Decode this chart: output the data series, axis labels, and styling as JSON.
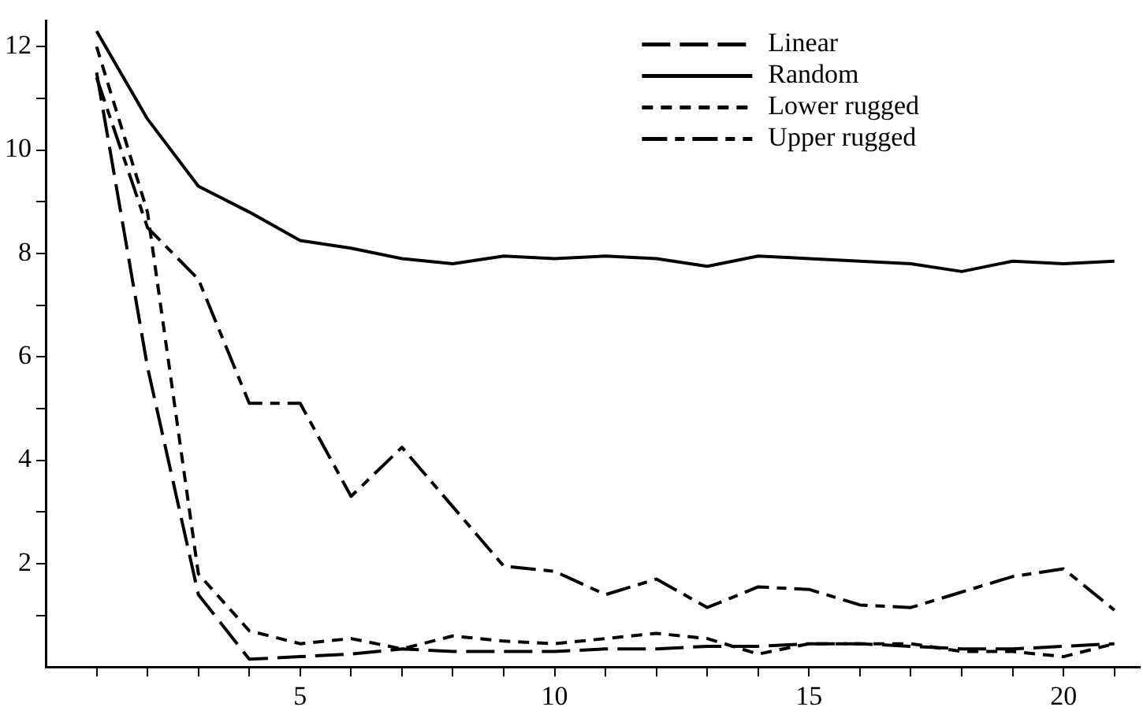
{
  "chart_data": {
    "type": "line",
    "x": [
      1,
      2,
      3,
      4,
      5,
      6,
      7,
      8,
      9,
      10,
      11,
      12,
      13,
      14,
      15,
      16,
      17,
      18,
      19,
      20,
      21
    ],
    "series": [
      {
        "name": "Linear",
        "color": "#000000",
        "line_style": "dashed",
        "values": [
          11.5,
          5.8,
          1.4,
          0.15,
          0.2,
          0.25,
          0.35,
          0.3,
          0.3,
          0.3,
          0.35,
          0.35,
          0.4,
          0.4,
          0.45,
          0.45,
          0.4,
          0.35,
          0.35,
          0.4,
          0.45
        ]
      },
      {
        "name": "Random",
        "color": "#000000",
        "line_style": "solid",
        "values": [
          12.3,
          10.6,
          9.3,
          8.8,
          8.25,
          8.1,
          7.9,
          7.8,
          7.95,
          7.9,
          7.95,
          7.9,
          7.75,
          7.95,
          7.9,
          7.85,
          7.8,
          7.65,
          7.85,
          7.8,
          7.85
        ]
      },
      {
        "name": "Lower rugged",
        "color": "#000000",
        "line_style": "dotted",
        "values": [
          12.0,
          8.8,
          1.8,
          0.7,
          0.45,
          0.55,
          0.35,
          0.6,
          0.5,
          0.45,
          0.55,
          0.65,
          0.55,
          0.25,
          0.45,
          0.45,
          0.45,
          0.3,
          0.3,
          0.2,
          0.45
        ]
      },
      {
        "name": "Upper rugged",
        "color": "#000000",
        "line_style": "dashdot",
        "values": [
          11.4,
          8.5,
          7.5,
          5.1,
          5.1,
          3.3,
          4.25,
          3.1,
          1.95,
          1.85,
          1.4,
          1.7,
          1.15,
          1.55,
          1.5,
          1.2,
          1.15,
          1.45,
          1.75,
          1.9,
          1.1
        ]
      }
    ],
    "xlim": [
      0,
      21.5
    ],
    "xticks": [
      {
        "value": 1,
        "label": null
      },
      {
        "value": 2,
        "label": null
      },
      {
        "value": 3,
        "label": null
      },
      {
        "value": 4,
        "label": null
      },
      5,
      {
        "value": 6,
        "label": null
      },
      {
        "value": 7,
        "label": null
      },
      {
        "value": 8,
        "label": null
      },
      {
        "value": 9,
        "label": null
      },
      10,
      {
        "value": 11,
        "label": null
      },
      {
        "value": 12,
        "label": null
      },
      {
        "value": 13,
        "label": null
      },
      {
        "value": 14,
        "label": null
      },
      15,
      {
        "value": 16,
        "label": null
      },
      {
        "value": 17,
        "label": null
      },
      {
        "value": 18,
        "label": null
      },
      {
        "value": 19,
        "label": null
      },
      20,
      {
        "value": 21,
        "label": null
      }
    ],
    "ylim": [
      0,
      12.5
    ],
    "yticks": [
      {
        "value": 1,
        "label": null
      },
      2,
      {
        "value": 3,
        "label": null
      },
      4,
      {
        "value": 5,
        "label": null
      },
      6,
      {
        "value": 7,
        "label": null
      },
      8,
      {
        "value": 9,
        "label": null
      },
      10,
      {
        "value": 11,
        "label": null
      },
      12
    ],
    "grid": false,
    "legend": "top right",
    "marker": "none"
  }
}
